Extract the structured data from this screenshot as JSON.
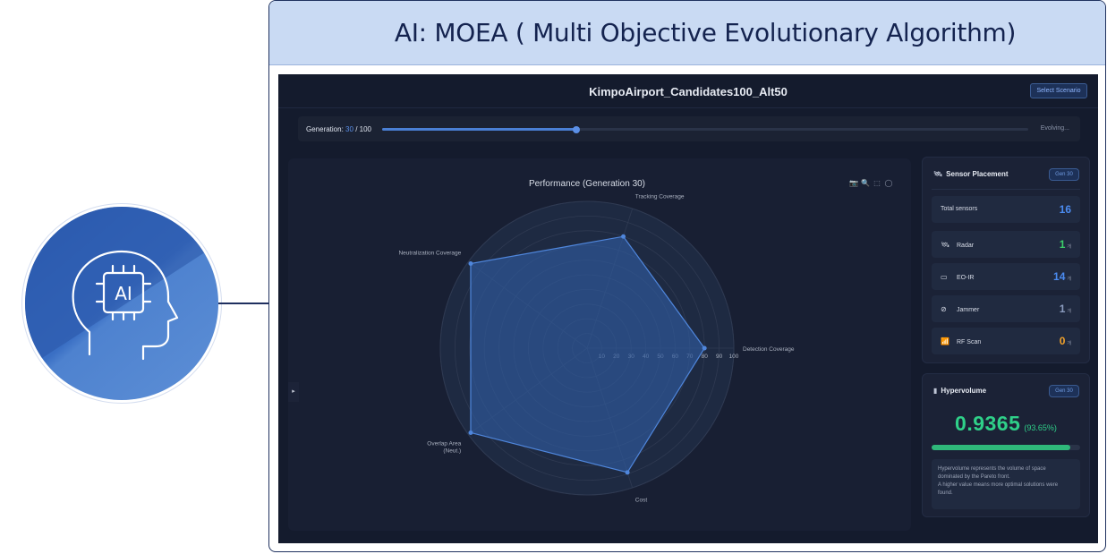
{
  "header": {
    "title": "AI: MOEA ( Multi Objective Evolutionary Algorithm)"
  },
  "badge": {
    "icon": "ai-head-chip-icon",
    "text": "AI"
  },
  "app": {
    "scenario": "KimpoAirport_Candidates100_Alt50",
    "select_label": "Select Scenario",
    "generation": {
      "label": "Generation:",
      "current": "30",
      "total": "/ 100",
      "progress": 0.3,
      "status": "Evolving..."
    },
    "collapse_icon": "▸"
  },
  "chart": {
    "title": "Performance (Generation 30)",
    "toolbar_icons": [
      "camera-icon",
      "zoom-icon",
      "select-box-icon",
      "lasso-icon"
    ],
    "toolbar_glyphs": [
      "📷",
      "🔍",
      "⬚",
      "◯"
    ],
    "colors": {
      "fill": "#2f5a9e",
      "line": "#4f86dc",
      "grid": "#2f3a52",
      "text": "#a9b0bf"
    }
  },
  "chart_data": {
    "type": "radar",
    "title": "Performance (Generation 30)",
    "axes": [
      "Detection Coverage",
      "Tracking Coverage",
      "Neutralization Coverage",
      "Overlap Area\n(Neut.)",
      "Cost"
    ],
    "values": [
      80,
      80,
      98,
      98,
      89
    ],
    "radial_range": [
      0,
      100
    ],
    "radial_ticks": [
      "10",
      "20",
      "30",
      "40",
      "50",
      "60",
      "70",
      "80",
      "90",
      "100"
    ]
  },
  "placement": {
    "title": "Sensor Placement",
    "title_icon": "🛰",
    "gen_badge": "Gen 30",
    "total_label": "Total sensors",
    "total_value": "16",
    "rows": [
      {
        "icon": "🛰",
        "label": "Radar",
        "value": "1",
        "unit": "개",
        "color": "#3ccf6a"
      },
      {
        "icon": "▭",
        "label": "EO-IR",
        "value": "14",
        "unit": "개",
        "color": "#4b8bf0"
      },
      {
        "icon": "⊘",
        "label": "Jammer",
        "value": "1",
        "unit": "개",
        "color": "#8b9cbf"
      },
      {
        "icon": "📶",
        "label": "RF Scan",
        "value": "0",
        "unit": "개",
        "color": "#f0a12b"
      }
    ]
  },
  "hypervolume": {
    "title": "Hypervolume",
    "title_icon": "▮",
    "gen_badge": "Gen 30",
    "value": "0.9365",
    "percent": "(93.65%)",
    "fraction": 0.9365,
    "desc": [
      "Hypervolume represents the volume of space",
      "dominated by the Pareto front.",
      "A higher value means more optimal solutions were",
      "found."
    ]
  }
}
